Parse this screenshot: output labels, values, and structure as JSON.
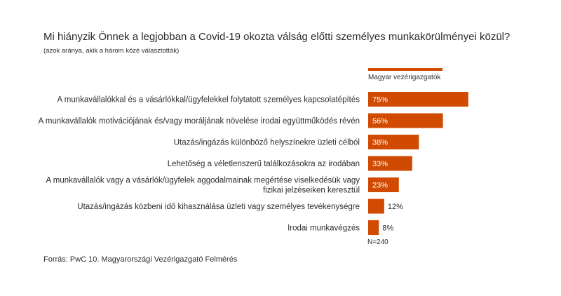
{
  "title": "Mi hiányzik Önnek a legjobban a Covid-19 okozta válság előtti személyes munkakörülményei közül?",
  "subtitle": "(azok aránya, akik a három közé választották)",
  "legend": {
    "label": "Magyar vezérigazgatók",
    "color": "#d04a02"
  },
  "n_label": "N=240",
  "source": "Forrás: PwC 10. Magyarországi Vezérigazgató Felmérés",
  "chart_data": {
    "type": "bar",
    "orientation": "horizontal",
    "title": "Mi hiányzik Önnek a legjobban a Covid-19 okozta válság előtti személyes munkakörülményei közül?",
    "categories": [
      [
        "A munkavállalókkal és a vásárlókkal/ügyfelekkel folytatott személyes kapcsolatépítés"
      ],
      [
        "A munkavállalók motivációjának és/vagy moráljának növelése irodai együttműködés révén"
      ],
      [
        "Utazás/ingázás különböző helyszínekre üzleti célból"
      ],
      [
        "Lehetőség a véletlenszerű találkozásokra az irodában"
      ],
      [
        "A munkavállalók vagy a vásárlók/ügyfelek aggodalmainak megértése viselkedésük vagy",
        "fizikai jelzéseiken keresztül"
      ],
      [
        "Utazás/ingázás közbeni idő kihasználása üzleti vagy személyes tevékenységre"
      ],
      [
        "Irodai munkavégzés"
      ]
    ],
    "series": [
      {
        "name": "Magyar vezérigazgatók",
        "values": [
          75,
          56,
          38,
          33,
          23,
          12,
          8
        ]
      }
    ],
    "value_labels": [
      "75%",
      "56%",
      "38%",
      "33%",
      "23%",
      "12%",
      "8%"
    ],
    "xlim": [
      0,
      100
    ],
    "bar_color": "#d04a02"
  }
}
